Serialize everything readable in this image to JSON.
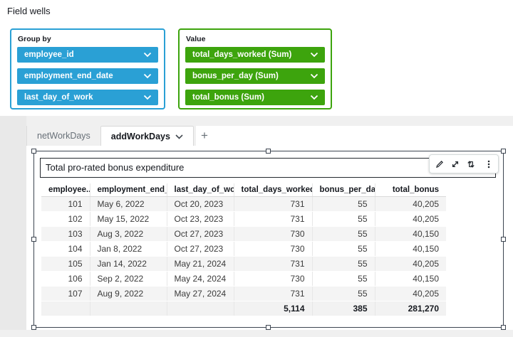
{
  "field_wells": {
    "title": "Field wells",
    "group_by": {
      "label": "Group by",
      "accent": "#2aa0d5",
      "items": [
        "employee_id",
        "employment_end_date",
        "last_day_of_work"
      ]
    },
    "value": {
      "label": "Value",
      "accent": "#3da40d",
      "items": [
        "total_days_worked (Sum)",
        "bonus_per_day (Sum)",
        "total_bonus (Sum)"
      ]
    }
  },
  "sheet_tabs": {
    "tabs": [
      {
        "label": "netWorkDays",
        "active": false
      },
      {
        "label": "addWorkDays",
        "active": true
      }
    ],
    "add_button": "+"
  },
  "visual": {
    "title": "Total pro-rated bonus expenditure",
    "toolbar_icons": [
      "edit-icon",
      "maximize-icon",
      "swap-icon",
      "menu-icon"
    ],
    "table": {
      "type": "table",
      "columns": [
        "employee..",
        "employment_end_date",
        "last_day_of_work",
        "total_days_worked",
        "bonus_per_day",
        "total_bonus"
      ],
      "rows": [
        [
          "101",
          "May 6, 2022",
          "Oct 20, 2023",
          "731",
          "55",
          "40,205"
        ],
        [
          "102",
          "May 15, 2022",
          "Oct 23, 2023",
          "731",
          "55",
          "40,205"
        ],
        [
          "103",
          "Aug 3, 2022",
          "Oct 27, 2023",
          "730",
          "55",
          "40,150"
        ],
        [
          "104",
          "Jan 8, 2022",
          "Oct 27, 2023",
          "730",
          "55",
          "40,150"
        ],
        [
          "105",
          "Jan 14, 2022",
          "May 21, 2024",
          "731",
          "55",
          "40,205"
        ],
        [
          "106",
          "Sep 2, 2022",
          "May 24, 2024",
          "730",
          "55",
          "40,150"
        ],
        [
          "107",
          "Aug 9, 2022",
          "May 27, 2024",
          "731",
          "55",
          "40,205"
        ]
      ],
      "totals": [
        "",
        "",
        "",
        "5,114",
        "385",
        "281,270"
      ]
    }
  }
}
